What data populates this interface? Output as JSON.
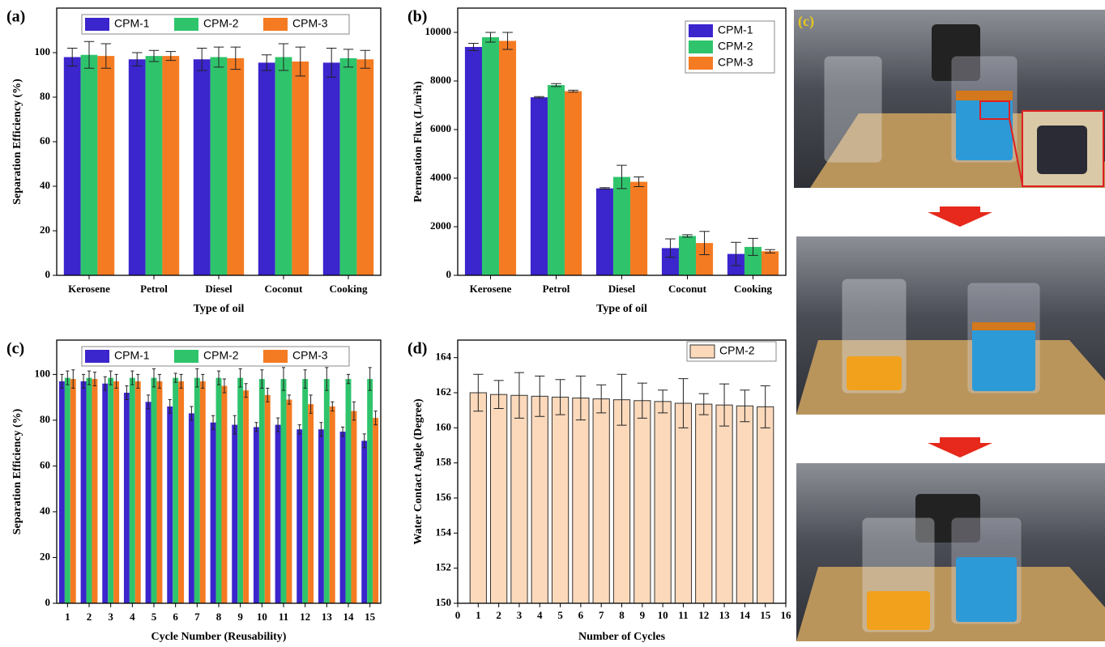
{
  "chart_data": [
    {
      "type": "bar",
      "title": "(a)",
      "x_label": "Type of oil",
      "y_label": "Separation Efficiency (%)",
      "categories": [
        "Kerosene",
        "Petrol",
        "Diesel",
        "Coconut",
        "Cooking"
      ],
      "series": [
        {
          "name": "CPM-1",
          "color": "#3b25cc",
          "values": [
            98,
            97,
            97,
            95.5,
            95.5
          ],
          "errors": [
            4,
            3,
            5,
            3.5,
            6.5
          ]
        },
        {
          "name": "CPM-2",
          "color": "#2fc46c",
          "values": [
            99,
            98.5,
            98,
            98,
            97.5
          ],
          "errors": [
            6,
            2.5,
            4.5,
            6,
            4
          ]
        },
        {
          "name": "CPM-3",
          "color": "#f47b22",
          "values": [
            98.5,
            98.5,
            97.5,
            96,
            97
          ],
          "errors": [
            5.5,
            2,
            5,
            6.5,
            4
          ]
        }
      ],
      "ylim": [
        0,
        120
      ],
      "yticks": [
        0,
        20,
        40,
        60,
        80,
        100
      ],
      "legend": "upper center"
    },
    {
      "type": "bar",
      "title": "(b)",
      "x_label": "Type of oil",
      "y_label": "Permeation Flux (L/m²h)",
      "categories": [
        "Kerosene",
        "Petrol",
        "Diesel",
        "Coconut",
        "Cooking"
      ],
      "series": [
        {
          "name": "CPM-1",
          "color": "#3b25cc",
          "values": [
            9400,
            7330,
            3580,
            1120,
            880
          ],
          "errors": [
            150,
            30,
            30,
            380,
            480
          ]
        },
        {
          "name": "CPM-2",
          "color": "#2fc46c",
          "values": [
            9800,
            7830,
            4050,
            1620,
            1170
          ],
          "errors": [
            200,
            60,
            480,
            50,
            350
          ]
        },
        {
          "name": "CPM-3",
          "color": "#f47b22",
          "values": [
            9650,
            7580,
            3850,
            1330,
            990
          ],
          "errors": [
            350,
            40,
            200,
            480,
            70
          ]
        }
      ],
      "ylim": [
        0,
        11000
      ],
      "yticks": [
        0,
        2000,
        4000,
        6000,
        8000,
        10000
      ],
      "legend": "upper right"
    },
    {
      "type": "bar",
      "title": "(c)",
      "x_label": "Cycle Number (Reusability)",
      "y_label": "Separation Efficiency (%)",
      "categories": [
        "1",
        "2",
        "3",
        "4",
        "5",
        "6",
        "7",
        "8",
        "9",
        "10",
        "11",
        "12",
        "13",
        "14",
        "15"
      ],
      "series": [
        {
          "name": "CPM-1",
          "color": "#3b25cc",
          "values": [
            97,
            97,
            96,
            92,
            88,
            86,
            83,
            79,
            78,
            77,
            78,
            76,
            76,
            75,
            71
          ],
          "errors": [
            3,
            3,
            3,
            3,
            3,
            3,
            3,
            3,
            4,
            2,
            3,
            2,
            3,
            2,
            3
          ]
        },
        {
          "name": "CPM-2",
          "color": "#2fc46c",
          "values": [
            98.5,
            98.5,
            98.5,
            98.5,
            98.5,
            98.5,
            98.5,
            98.5,
            98.5,
            98,
            98,
            98,
            98,
            98,
            98
          ],
          "errors": [
            3,
            3,
            3,
            3,
            4,
            2,
            4,
            3,
            4,
            4,
            5,
            4,
            5,
            2,
            5
          ]
        },
        {
          "name": "CPM-3",
          "color": "#f47b22",
          "values": [
            98,
            98,
            97,
            97,
            97,
            97,
            97,
            95,
            93,
            91,
            89,
            87,
            86,
            84,
            81
          ],
          "errors": [
            4,
            3,
            3,
            3,
            3,
            3,
            3,
            3,
            3,
            3,
            2,
            4,
            2,
            4,
            3
          ]
        }
      ],
      "ylim": [
        0,
        115
      ],
      "yticks": [
        0,
        20,
        40,
        60,
        80,
        100
      ],
      "legend": "upper center"
    },
    {
      "type": "bar",
      "title": "(d)",
      "x_label": "Number of Cycles",
      "y_label": "Water Contact Angle (Degree)",
      "x": [
        1,
        2,
        3,
        4,
        5,
        6,
        7,
        8,
        9,
        10,
        11,
        12,
        13,
        14,
        15
      ],
      "series": [
        {
          "name": "CPM-2",
          "color": "#fcd9bb",
          "values": [
            162,
            161.9,
            161.85,
            161.8,
            161.75,
            161.7,
            161.65,
            161.6,
            161.55,
            161.5,
            161.4,
            161.35,
            161.3,
            161.25,
            161.2
          ],
          "errors": [
            1.05,
            0.8,
            1.3,
            1.15,
            1.0,
            1.25,
            0.8,
            1.45,
            1.0,
            0.65,
            1.4,
            0.6,
            1.2,
            0.9,
            1.2
          ]
        }
      ],
      "xlim": [
        0,
        16
      ],
      "xticks": [
        0,
        1,
        2,
        3,
        4,
        5,
        6,
        7,
        8,
        9,
        10,
        11,
        12,
        13,
        14,
        15,
        16
      ],
      "ylim": [
        150,
        165
      ],
      "yticks": [
        150,
        152,
        154,
        156,
        158,
        160,
        162,
        164
      ],
      "legend": "upper right"
    }
  ],
  "photos": {
    "label": "(c)"
  }
}
